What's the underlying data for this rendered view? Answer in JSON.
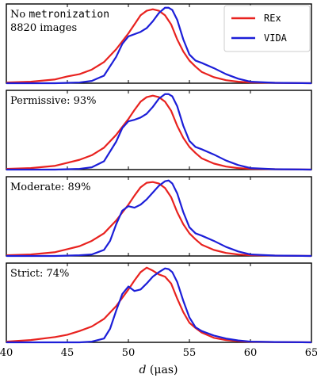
{
  "chart_data": {
    "type": "line",
    "xlabel": "d (μas)",
    "xlabel_italic_part": "d",
    "xlabel_rest": " (μas)",
    "xlim": [
      40,
      65
    ],
    "x_ticks": [
      40,
      45,
      50,
      55,
      60,
      65
    ],
    "x_tick_labels": [
      "40",
      "45",
      "50",
      "55",
      "60",
      "65"
    ],
    "ylim": [
      0,
      1.05
    ],
    "grid": false,
    "legend": {
      "placement": "top-right (first panel)",
      "entries": [
        {
          "name": "REx",
          "color": "#e8221f"
        },
        {
          "name": "VIDA",
          "color": "#1c1ed8"
        }
      ]
    },
    "panels": [
      {
        "title_line1_prefix": "No ",
        "title_line1_mono": "metronization",
        "title_line2": "8820 images",
        "series": [
          {
            "name": "REx",
            "x": [
              40,
              42,
              44,
              45,
              46,
              47,
              48,
              49,
              50,
              50.5,
              51,
              51.5,
              52,
              52.5,
              53,
              53.5,
              54,
              54.5,
              55,
              55.5,
              56,
              57,
              58,
              59,
              60,
              62,
              65
            ],
            "values": [
              0.01,
              0.02,
              0.05,
              0.09,
              0.12,
              0.18,
              0.28,
              0.45,
              0.66,
              0.78,
              0.9,
              0.96,
              0.98,
              0.96,
              0.9,
              0.78,
              0.58,
              0.42,
              0.3,
              0.22,
              0.15,
              0.08,
              0.04,
              0.02,
              0.01,
              0.005,
              0.0
            ]
          },
          {
            "name": "VIDA",
            "x": [
              40,
              44,
              46,
              47,
              48,
              49,
              49.5,
              50,
              50.5,
              51,
              51.5,
              52,
              52.5,
              53,
              53.3,
              53.6,
              54,
              54.5,
              55,
              55.5,
              56,
              57,
              58,
              59,
              60,
              62,
              65
            ],
            "values": [
              0.0,
              0.0,
              0.01,
              0.03,
              0.1,
              0.35,
              0.52,
              0.62,
              0.65,
              0.68,
              0.73,
              0.82,
              0.93,
              1.0,
              1.0,
              0.97,
              0.84,
              0.58,
              0.38,
              0.3,
              0.27,
              0.2,
              0.12,
              0.06,
              0.02,
              0.005,
              0.0
            ]
          }
        ]
      },
      {
        "title_line1_prefix": "Permissive: 93%",
        "title_line1_mono": "",
        "title_line2": "",
        "series": [
          {
            "name": "REx",
            "x": [
              40,
              42,
              44,
              45,
              46,
              47,
              48,
              49,
              50,
              50.5,
              51,
              51.5,
              52,
              52.5,
              53,
              53.5,
              54,
              54.5,
              55,
              55.5,
              56,
              57,
              58,
              59,
              60,
              62,
              65
            ],
            "values": [
              0.01,
              0.02,
              0.05,
              0.09,
              0.13,
              0.19,
              0.29,
              0.46,
              0.67,
              0.79,
              0.9,
              0.96,
              0.98,
              0.96,
              0.9,
              0.78,
              0.58,
              0.42,
              0.3,
              0.22,
              0.15,
              0.08,
              0.04,
              0.02,
              0.01,
              0.005,
              0.0
            ]
          },
          {
            "name": "VIDA",
            "x": [
              40,
              44,
              46,
              47,
              48,
              49,
              49.5,
              50,
              50.5,
              51,
              51.5,
              52,
              52.5,
              53,
              53.3,
              53.6,
              54,
              54.5,
              55,
              55.5,
              56,
              57,
              58,
              59,
              60,
              62,
              65
            ],
            "values": [
              0.0,
              0.0,
              0.01,
              0.03,
              0.11,
              0.37,
              0.55,
              0.64,
              0.66,
              0.69,
              0.74,
              0.83,
              0.94,
              1.0,
              1.0,
              0.97,
              0.84,
              0.58,
              0.38,
              0.3,
              0.27,
              0.2,
              0.12,
              0.06,
              0.02,
              0.005,
              0.0
            ]
          }
        ]
      },
      {
        "title_line1_prefix": "Moderate: 89%",
        "title_line1_mono": "",
        "title_line2": "",
        "series": [
          {
            "name": "REx",
            "x": [
              40,
              42,
              44,
              45,
              46,
              47,
              48,
              49,
              50,
              50.5,
              51,
              51.5,
              52,
              52.5,
              53,
              53.5,
              54,
              54.5,
              55,
              55.5,
              56,
              57,
              58,
              59,
              60,
              62,
              65
            ],
            "values": [
              0.01,
              0.02,
              0.05,
              0.09,
              0.13,
              0.2,
              0.3,
              0.47,
              0.68,
              0.8,
              0.91,
              0.97,
              0.98,
              0.96,
              0.9,
              0.78,
              0.58,
              0.42,
              0.3,
              0.22,
              0.15,
              0.08,
              0.04,
              0.02,
              0.01,
              0.005,
              0.0
            ]
          },
          {
            "name": "VIDA",
            "x": [
              40,
              44,
              46,
              47,
              48,
              48.5,
              49,
              49.5,
              50,
              50.5,
              51,
              51.5,
              52,
              52.5,
              53,
              53.3,
              53.6,
              54,
              54.5,
              55,
              55.5,
              56,
              57,
              58,
              59,
              60,
              62,
              65
            ],
            "values": [
              0.0,
              0.0,
              0.01,
              0.02,
              0.08,
              0.2,
              0.42,
              0.6,
              0.66,
              0.64,
              0.68,
              0.75,
              0.84,
              0.93,
              0.99,
              1.0,
              0.96,
              0.83,
              0.58,
              0.38,
              0.3,
              0.27,
              0.2,
              0.12,
              0.06,
              0.02,
              0.005,
              0.0
            ]
          }
        ]
      },
      {
        "title_line1_prefix": "Strict: 74%",
        "title_line1_mono": "",
        "title_line2": "",
        "series": [
          {
            "name": "REx",
            "x": [
              40,
              42,
              44,
              45,
              46,
              47,
              48,
              49,
              50,
              50.5,
              51,
              51.5,
              52,
              52.5,
              53,
              53.5,
              54,
              54.5,
              55,
              55.5,
              56,
              57,
              58,
              59,
              60,
              62,
              65
            ],
            "values": [
              0.01,
              0.03,
              0.07,
              0.1,
              0.15,
              0.21,
              0.31,
              0.48,
              0.7,
              0.82,
              0.93,
              0.99,
              0.95,
              0.9,
              0.87,
              0.78,
              0.58,
              0.4,
              0.26,
              0.19,
              0.13,
              0.06,
              0.03,
              0.015,
              0.008,
              0.004,
              0.0
            ]
          },
          {
            "name": "VIDA",
            "x": [
              40,
              44,
              46,
              47,
              48,
              48.5,
              49,
              49.5,
              50,
              50.5,
              51,
              51.5,
              52,
              52.5,
              53,
              53.3,
              53.6,
              54,
              54.5,
              55,
              55.5,
              56,
              57,
              58,
              59,
              60,
              62,
              65
            ],
            "values": [
              0.0,
              0.0,
              0.0,
              0.01,
              0.05,
              0.18,
              0.42,
              0.64,
              0.74,
              0.68,
              0.7,
              0.78,
              0.87,
              0.93,
              0.98,
              0.97,
              0.93,
              0.8,
              0.55,
              0.33,
              0.2,
              0.15,
              0.09,
              0.05,
              0.025,
              0.01,
              0.004,
              0.0
            ]
          }
        ]
      }
    ]
  }
}
